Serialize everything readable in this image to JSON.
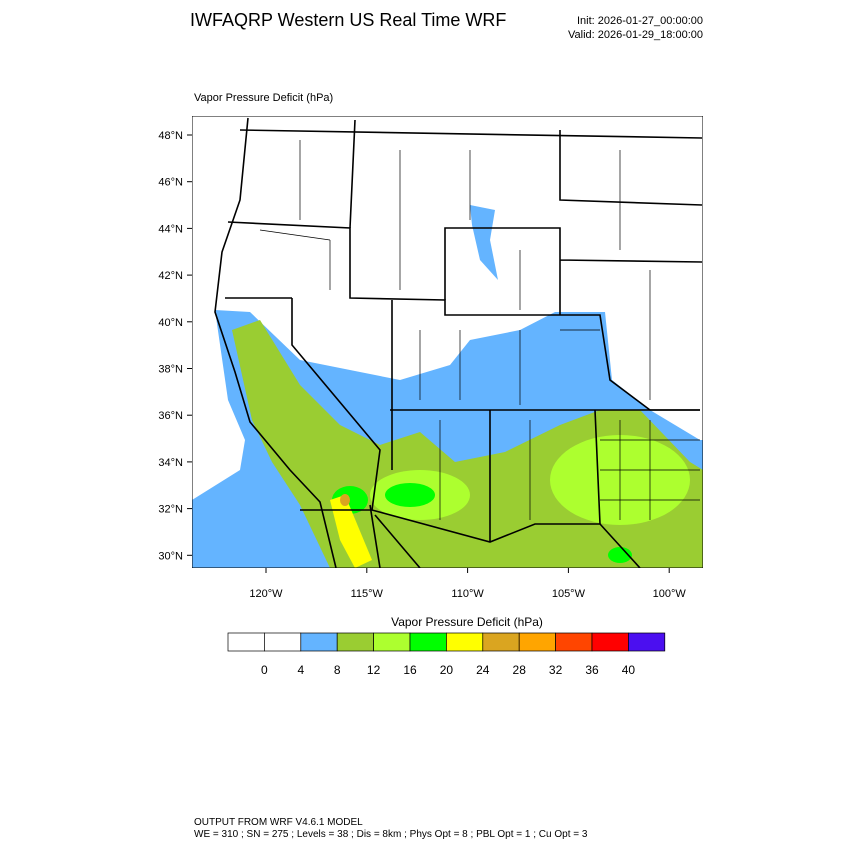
{
  "header": {
    "title": "IWFAQRP Western US Real Time WRF",
    "init": "Init: 2026-01-27_00:00:00",
    "valid": "Valid: 2026-01-29_18:00:00"
  },
  "map": {
    "subtitle": "Vapor Pressure Deficit   (hPa)",
    "lat_labels": [
      "48°N",
      "46°N",
      "44°N",
      "42°N",
      "40°N",
      "38°N",
      "36°N",
      "34°N",
      "32°N",
      "30°N"
    ],
    "lon_labels": [
      "120°W",
      "115°W",
      "110°W",
      "105°W",
      "100°W"
    ]
  },
  "colorbar": {
    "title": "Vapor Pressure Deficit  (hPa)",
    "labels": [
      "0",
      "4",
      "8",
      "12",
      "16",
      "20",
      "24",
      "28",
      "32",
      "36",
      "40"
    ],
    "colors": [
      "#ffffff",
      "#ffffff",
      "#64b4ff",
      "#9acd32",
      "#adff2f",
      "#00ff00",
      "#ffff00",
      "#daa520",
      "#ffa500",
      "#ff4500",
      "#ff0000",
      "#4b0ff0"
    ]
  },
  "footer": {
    "line1": "OUTPUT FROM WRF V4.6.1 MODEL",
    "line2": "WE = 310 ; SN = 275 ; Levels = 38 ; Dis = 8km ; Phys Opt = 8 ; PBL Opt = 1 ; Cu Opt = 3"
  }
}
